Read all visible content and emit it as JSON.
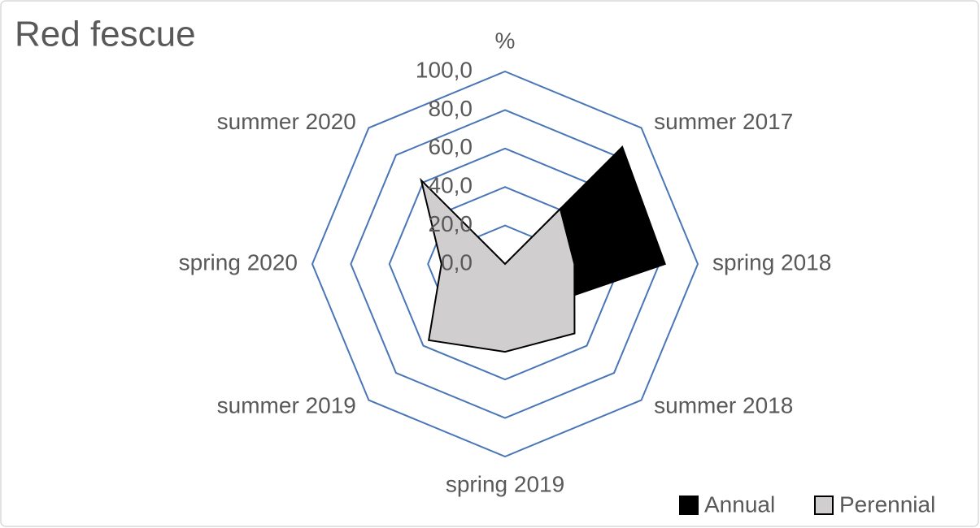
{
  "chart_data": {
    "type": "radar",
    "title": "Red fescue",
    "categories": [
      "%",
      "summer 2017",
      "spring 2018",
      "summer 2018",
      "spring 2019",
      "summer 2019",
      "spring 2020",
      "summer 2020"
    ],
    "series": [
      {
        "name": "Annual",
        "color": "#000000",
        "values": [
          0,
          86,
          83,
          30,
          20,
          20,
          20,
          20
        ]
      },
      {
        "name": "Perennial",
        "color": "#d0cece",
        "values": [
          0,
          40.5,
          36,
          51,
          45.6,
          56,
          33,
          61.5
        ]
      }
    ],
    "ylim": [
      0,
      100
    ],
    "yticks": [
      {
        "value": 0,
        "label": "0,0"
      },
      {
        "value": 20,
        "label": "20,0"
      },
      {
        "value": 40,
        "label": "40,0"
      },
      {
        "value": 60,
        "label": "60,0"
      },
      {
        "value": 80,
        "label": "80,0"
      },
      {
        "value": 100,
        "label": "100,0"
      }
    ],
    "grid": true,
    "grid_color": "#4a76b8",
    "legend": "bottom-right"
  }
}
